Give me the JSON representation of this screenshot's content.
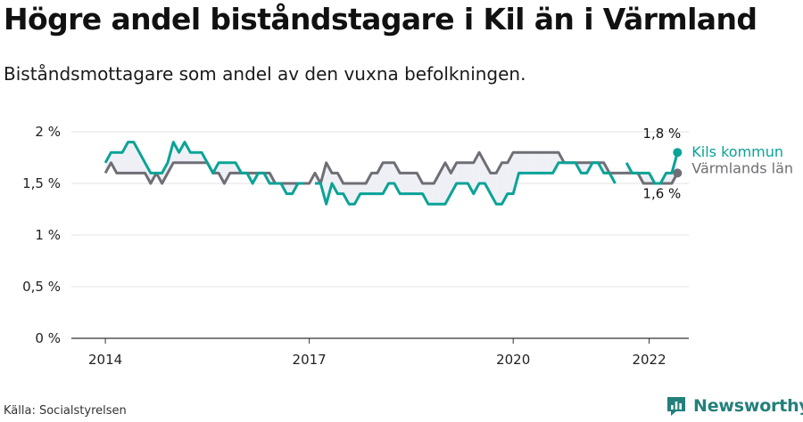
{
  "header": {
    "title": "Högre andel biståndstagare i Kil än i Värmland",
    "subtitle": "Biståndsmottagare som andel av den vuxna befolkningen."
  },
  "footer": {
    "source": "Källa: Socialstyrelsen",
    "brand": "Newsworthy",
    "brand_color": "#23807a"
  },
  "chart_data": {
    "type": "line",
    "x_start": "2014-01",
    "x_end": "2022-02",
    "x_axis_range": [
      "2013-07",
      "2022-08"
    ],
    "x_ticks": [
      "2014",
      "2017",
      "2020",
      "2022"
    ],
    "x_tick_dates": [
      "2014-01",
      "2017-01",
      "2020-01",
      "2022-01"
    ],
    "y_ticks": [
      "0 %",
      "0,5 %",
      "1 %",
      "1,5 %",
      "2 %"
    ],
    "y_tick_values": [
      0,
      0.5,
      1,
      1.5,
      2
    ],
    "ylim": [
      0,
      2
    ],
    "grid": true,
    "legend_placement": "right-end",
    "series": [
      {
        "name": "Kils kommun",
        "color": "#0aa396",
        "end_label": "1,8 %",
        "values": [
          1.7,
          1.8,
          1.8,
          1.8,
          1.9,
          1.9,
          1.8,
          1.7,
          1.6,
          1.6,
          1.6,
          1.7,
          1.9,
          1.8,
          1.9,
          1.8,
          1.8,
          1.8,
          1.7,
          1.6,
          1.7,
          1.7,
          1.7,
          1.7,
          1.6,
          1.6,
          1.5,
          1.6,
          1.6,
          1.5,
          1.5,
          1.5,
          1.4,
          1.4,
          1.5,
          1.5,
          null,
          1.5,
          1.5,
          1.3,
          1.5,
          1.4,
          1.4,
          1.3,
          1.3,
          1.4,
          1.4,
          1.4,
          1.4,
          1.4,
          1.5,
          1.5,
          1.4,
          1.4,
          1.4,
          1.4,
          1.4,
          1.3,
          1.3,
          1.3,
          1.3,
          1.4,
          1.5,
          1.5,
          1.5,
          1.4,
          1.5,
          1.5,
          1.4,
          1.3,
          1.3,
          1.4,
          1.4,
          1.6,
          1.6,
          1.6,
          1.6,
          1.6,
          1.6,
          1.6,
          1.7,
          1.7,
          1.7,
          1.7,
          1.6,
          1.6,
          1.7,
          1.7,
          1.6,
          1.6,
          1.5,
          null,
          1.7,
          1.6,
          1.6,
          1.6,
          1.6,
          1.5,
          1.5,
          1.6,
          1.6,
          1.8
        ]
      },
      {
        "name": "Värmlands län",
        "color": "#6f6e75",
        "end_label": "1,6 %",
        "values": [
          1.6,
          1.7,
          1.6,
          1.6,
          1.6,
          1.6,
          1.6,
          1.6,
          1.5,
          1.6,
          1.5,
          1.6,
          1.7,
          1.7,
          1.7,
          1.7,
          1.7,
          1.7,
          1.7,
          1.6,
          1.6,
          1.5,
          1.6,
          1.6,
          1.6,
          1.6,
          1.6,
          1.6,
          1.6,
          1.6,
          1.5,
          1.5,
          1.5,
          1.5,
          1.5,
          1.5,
          1.5,
          1.6,
          1.5,
          1.7,
          1.6,
          1.6,
          1.5,
          1.5,
          1.5,
          1.5,
          1.5,
          1.6,
          1.6,
          1.7,
          1.7,
          1.7,
          1.6,
          1.6,
          1.6,
          1.6,
          1.5,
          1.5,
          1.5,
          1.6,
          1.7,
          1.6,
          1.7,
          1.7,
          1.7,
          1.7,
          1.8,
          1.7,
          1.6,
          1.6,
          1.7,
          1.7,
          1.8,
          1.8,
          1.8,
          1.8,
          1.8,
          1.8,
          1.8,
          1.8,
          1.8,
          1.7,
          1.7,
          1.7,
          1.7,
          1.7,
          1.7,
          1.7,
          1.7,
          1.6,
          1.6,
          1.6,
          1.6,
          1.6,
          1.6,
          1.5,
          1.5,
          1.5,
          1.5,
          1.5,
          1.5,
          1.6
        ]
      }
    ]
  }
}
